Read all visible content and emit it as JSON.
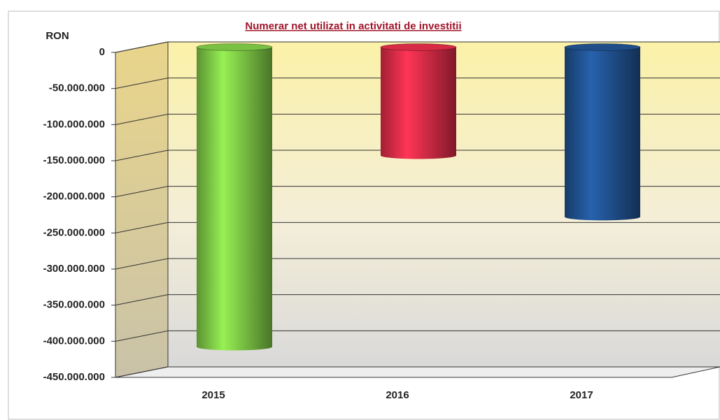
{
  "chart_data": {
    "type": "bar",
    "title": "Numerar net utilizat in activitati de investitii",
    "y_label": "RON",
    "categories": [
      "2015",
      "2016",
      "2017"
    ],
    "values": [
      -415000000,
      -150000000,
      -235000000
    ],
    "colors": [
      "#79c143",
      "#d62a45",
      "#1f4e8a"
    ],
    "ylim": [
      -450000000,
      0
    ],
    "yticks": [
      0,
      {
        "value": -50000000,
        "label": "-50.000.000"
      },
      {
        "value": -100000000,
        "label": "-100.000.000"
      },
      {
        "value": -150000000,
        "label": "-150.000.000"
      },
      {
        "value": -200000000,
        "label": "-200.000.000"
      },
      {
        "value": -250000000,
        "label": "-250.000.000"
      },
      {
        "value": -300000000,
        "label": "-300.000.000"
      },
      {
        "value": -350000000,
        "label": "-350.000.000"
      },
      {
        "value": -400000000,
        "label": "-400.000.000"
      },
      {
        "value": -450000000,
        "label": "-450.000.000"
      }
    ],
    "grid": true
  }
}
